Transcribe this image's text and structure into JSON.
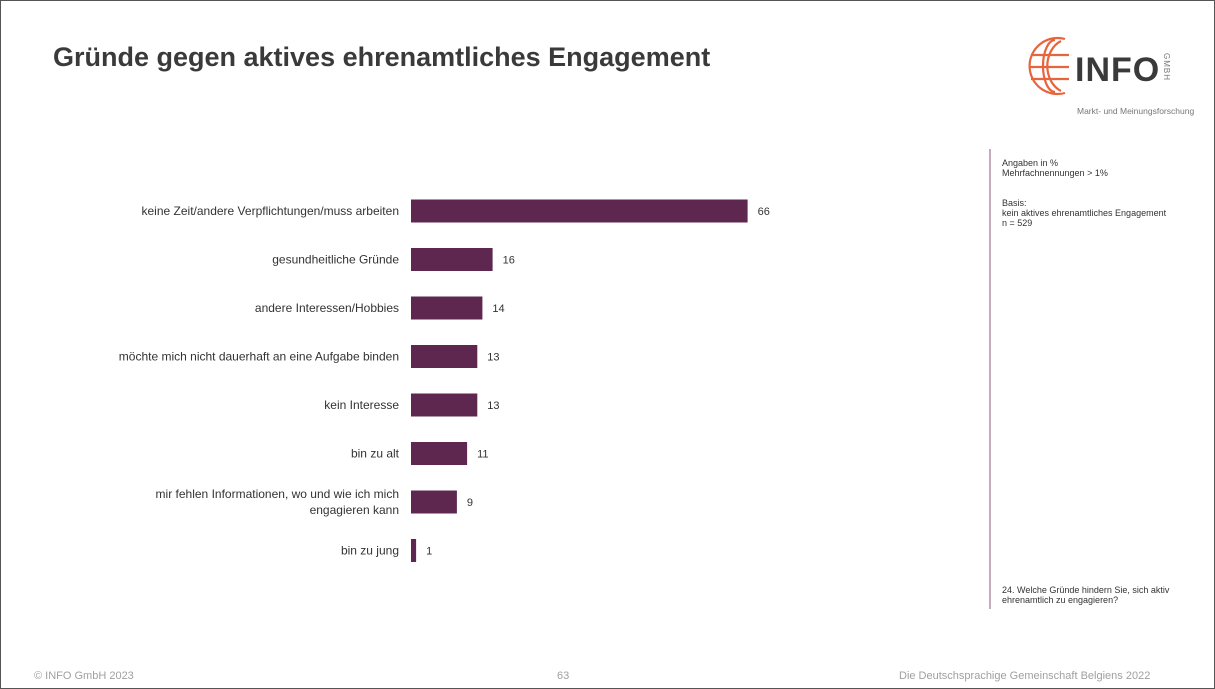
{
  "title": "Gründe gegen aktives ehrenamtliches Engagement",
  "logo": {
    "brand": "INFO",
    "suffix": "GMBH",
    "tagline": "Markt- und Meinungsforschung"
  },
  "side_notes": {
    "units": "Angaben in %\nMehrfachnennungen > 1%",
    "basis": "Basis:\nkein aktives ehrenamtliches Engagement\nn = 529",
    "question": "24. Welche Gründe hindern Sie, sich aktiv\nehrenamtlich zu engagieren?"
  },
  "footer": {
    "copyright": "© INFO GmbH 2023",
    "page": "63",
    "source": "Die Deutschsprachige Gemeinschaft Belgiens 2022"
  },
  "colors": {
    "bar": "#5e2750",
    "divider": "#c9a9bd",
    "globe": "#e8643c"
  },
  "chart_data": {
    "type": "bar",
    "orientation": "horizontal",
    "categories": [
      "keine Zeit/andere Verpflichtungen/muss arbeiten",
      "gesundheitliche Gründe",
      "andere Interessen/Hobbies",
      "möchte mich nicht dauerhaft an eine Aufgabe binden",
      "kein Interesse",
      "bin zu alt",
      "mir fehlen Informationen, wo und wie ich mich engagieren kann",
      "bin zu jung"
    ],
    "values": [
      66,
      16,
      14,
      13,
      13,
      11,
      9,
      1
    ],
    "data_labels": true,
    "grid": false,
    "xlim": [
      0,
      100
    ]
  }
}
